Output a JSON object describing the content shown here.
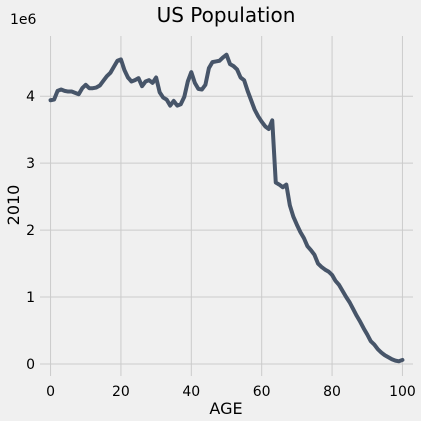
{
  "chart_data": {
    "type": "line",
    "title": "US Population",
    "xlabel": "AGE",
    "ylabel": "2010",
    "y_offset_label": "1e6",
    "xlim": [
      -3,
      103
    ],
    "ylim": [
      -0.18,
      4.9
    ],
    "x_ticks": [
      0,
      20,
      40,
      60,
      80,
      100
    ],
    "y_ticks": [
      0,
      1,
      2,
      3,
      4
    ],
    "x_tick_labels": [
      "0",
      "20",
      "40",
      "60",
      "80",
      "100"
    ],
    "y_tick_labels": [
      "0",
      "1",
      "2",
      "3",
      "4"
    ],
    "grid": true,
    "series": [
      {
        "color": "#475569",
        "x": [
          0,
          1,
          2,
          3,
          4,
          5,
          6,
          7,
          8,
          9,
          10,
          11,
          12,
          13,
          14,
          15,
          16,
          17,
          18,
          19,
          20,
          21,
          22,
          23,
          24,
          25,
          26,
          27,
          28,
          29,
          30,
          31,
          32,
          33,
          34,
          35,
          36,
          37,
          38,
          39,
          40,
          41,
          42,
          43,
          44,
          45,
          46,
          47,
          48,
          49,
          50,
          51,
          52,
          53,
          54,
          55,
          56,
          57,
          58,
          59,
          60,
          61,
          62,
          63,
          64,
          65,
          66,
          67,
          68,
          69,
          70,
          71,
          72,
          73,
          74,
          75,
          76,
          77,
          78,
          79,
          80,
          81,
          82,
          83,
          84,
          85,
          86,
          87,
          88,
          89,
          90,
          91,
          92,
          93,
          94,
          95,
          96,
          97,
          98,
          99,
          100
        ],
        "values": [
          3.94,
          3.95,
          4.08,
          4.1,
          4.08,
          4.07,
          4.07,
          4.05,
          4.03,
          4.12,
          4.17,
          4.12,
          4.12,
          4.13,
          4.16,
          4.23,
          4.3,
          4.35,
          4.44,
          4.53,
          4.55,
          4.39,
          4.28,
          4.22,
          4.24,
          4.27,
          4.15,
          4.22,
          4.24,
          4.2,
          4.28,
          4.06,
          3.98,
          3.95,
          3.86,
          3.93,
          3.86,
          3.88,
          3.99,
          4.22,
          4.36,
          4.2,
          4.11,
          4.1,
          4.17,
          4.42,
          4.51,
          4.52,
          4.53,
          4.58,
          4.62,
          4.48,
          4.45,
          4.4,
          4.28,
          4.24,
          4.08,
          3.94,
          3.8,
          3.7,
          3.62,
          3.55,
          3.51,
          3.64,
          2.71,
          2.68,
          2.64,
          2.68,
          2.37,
          2.2,
          2.08,
          1.97,
          1.88,
          1.76,
          1.7,
          1.63,
          1.5,
          1.45,
          1.41,
          1.38,
          1.33,
          1.24,
          1.18,
          1.09,
          1.0,
          0.92,
          0.82,
          0.72,
          0.63,
          0.53,
          0.44,
          0.34,
          0.29,
          0.22,
          0.17,
          0.13,
          0.1,
          0.07,
          0.05,
          0.04,
          0.06
        ]
      }
    ]
  }
}
